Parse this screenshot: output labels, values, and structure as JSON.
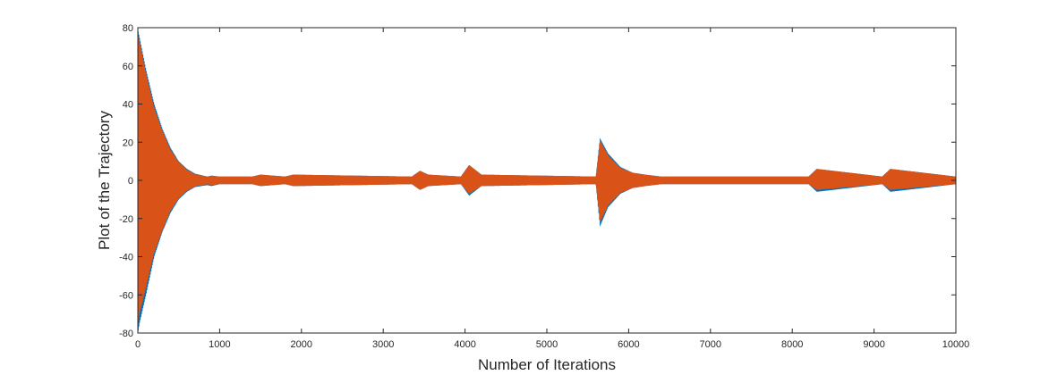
{
  "chart_data": {
    "type": "line",
    "title": "",
    "xlabel": "Number of Iterations",
    "ylabel": "Plot of the Trajectory",
    "xlim": [
      0,
      10000
    ],
    "ylim": [
      -80,
      80
    ],
    "xticks": [
      0,
      1000,
      2000,
      3000,
      4000,
      5000,
      6000,
      7000,
      8000,
      9000,
      10000
    ],
    "xtick_labels": [
      "0",
      "1000",
      "2000",
      "3000",
      "4000",
      "5000",
      "6000",
      "7000",
      "8000",
      "9000",
      "10000"
    ],
    "yticks": [
      -80,
      -60,
      -40,
      -20,
      0,
      20,
      40,
      60,
      80
    ],
    "ytick_labels": [
      "-80",
      "-60",
      "-40",
      "-20",
      "0",
      "20",
      "40",
      "60",
      "80"
    ],
    "grid": false,
    "legend": "none",
    "series": [
      {
        "color": "#0072BD",
        "envelope_x": [
          0,
          20,
          100,
          200,
          300,
          400,
          500,
          600,
          700,
          850,
          900,
          1000,
          1400,
          1500,
          1800,
          1900,
          3350,
          3450,
          3550,
          3950,
          4050,
          4200,
          5600,
          5650,
          5750,
          5900,
          6050,
          6200,
          6400,
          8200,
          8300,
          9100,
          9200,
          10000
        ],
        "envelope_max": [
          79,
          75,
          58,
          40,
          27,
          17,
          10,
          6,
          3.5,
          2,
          2.5,
          2,
          2,
          3,
          2,
          3,
          2,
          5,
          3,
          2,
          8,
          3,
          2,
          22,
          14,
          7,
          4,
          3,
          2,
          2,
          6,
          2,
          6,
          2
        ],
        "envelope_min": [
          -80,
          -75,
          -60,
          -40,
          -27,
          -17,
          -10,
          -6,
          -3.5,
          -2.5,
          -3,
          -2,
          -2,
          -3,
          -2,
          -3,
          -2,
          -5,
          -3,
          -2,
          -8,
          -3,
          -2,
          -24,
          -14,
          -7,
          -4,
          -3,
          -2,
          -2,
          -6,
          -2,
          -6,
          -2
        ]
      },
      {
        "color": "#D95319",
        "envelope_x": [
          0,
          20,
          100,
          200,
          300,
          400,
          500,
          600,
          700,
          850,
          900,
          1000,
          1400,
          1500,
          1800,
          1900,
          3350,
          3450,
          3550,
          3950,
          4050,
          4200,
          5600,
          5650,
          5750,
          5900,
          6050,
          6200,
          6400,
          8200,
          8300,
          9100,
          9200,
          10000
        ],
        "envelope_max": [
          77,
          73,
          56,
          38,
          26,
          16,
          9.5,
          5.5,
          3.2,
          2,
          2.3,
          2,
          2,
          3,
          2,
          3,
          2,
          5,
          3,
          2,
          8,
          3,
          2,
          21,
          13,
          6.5,
          4,
          3,
          2,
          2,
          6,
          2,
          6,
          2
        ],
        "envelope_min": [
          -76,
          -70,
          -56,
          -38,
          -26,
          -16,
          -9.5,
          -5.5,
          -3.2,
          -2,
          -2.5,
          -2,
          -2,
          -3,
          -2,
          -3,
          -2,
          -5,
          -3,
          -2,
          -7,
          -3,
          -2,
          -22,
          -13,
          -6.5,
          -4,
          -3,
          -2,
          -2,
          -5,
          -2,
          -5,
          -2
        ]
      }
    ]
  }
}
